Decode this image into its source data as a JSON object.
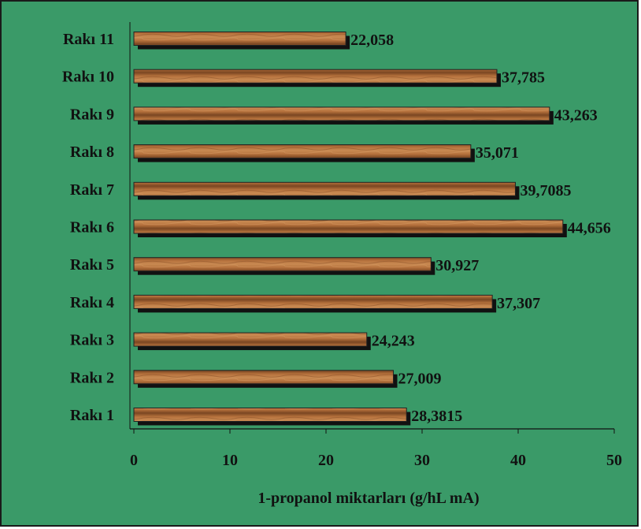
{
  "chart_data": {
    "type": "bar",
    "orientation": "horizontal",
    "categories": [
      "Rakı 1",
      "Rakı 2",
      "Rakı 3",
      "Rakı 4",
      "Rakı 5",
      "Rakı 6",
      "Rakı 7",
      "Rakı 8",
      "Rakı 9",
      "Rakı 10",
      "Rakı 11"
    ],
    "values": [
      28.3815,
      27.009,
      24.243,
      37.307,
      30.927,
      44.656,
      39.7085,
      35.071,
      43.263,
      37.785,
      22.058
    ],
    "data_labels": [
      "28,3815",
      "27,009",
      "24,243",
      "37,307",
      "30,927",
      "44,656",
      "39,7085",
      "35,071",
      "43,263",
      "37,785",
      "22,058"
    ],
    "xlabel": "1-propanol miktarları (g/hL mA)",
    "ylabel": "",
    "xlim": [
      0,
      50
    ],
    "xticks": [
      "0",
      "10",
      "20",
      "30",
      "40",
      "50"
    ],
    "grid": false,
    "colors": {
      "background": "#3a9a68",
      "bar": "#b5713c",
      "bar_dark": "#7a4622",
      "shadow": "#111111"
    }
  }
}
